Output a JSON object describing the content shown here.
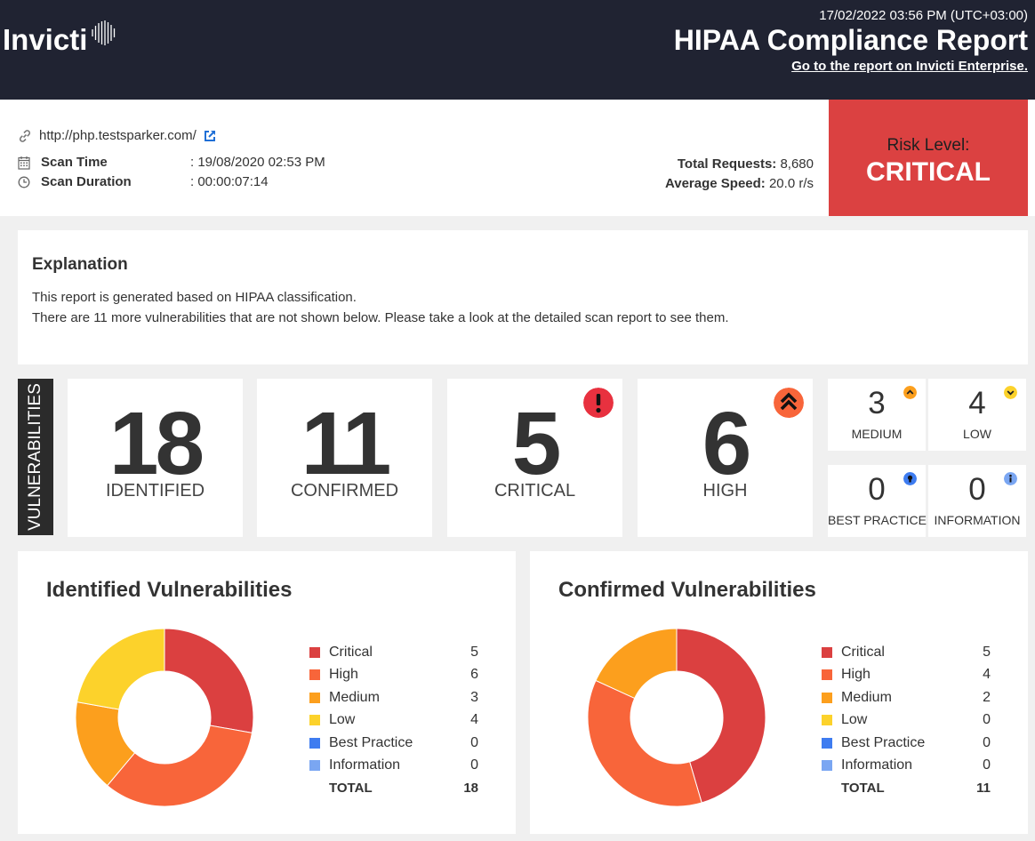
{
  "header": {
    "logo_text": "Invicti",
    "datetime": "17/02/2022 03:56 PM (UTC+03:00)",
    "title": "HIPAA Compliance Report",
    "link": "Go to the report on Invicti Enterprise."
  },
  "scan": {
    "url": "http://php.testsparker.com/",
    "scan_time_label": "Scan Time",
    "scan_time_value": ": 19/08/2020 02:53 PM",
    "scan_duration_label": "Scan Duration",
    "scan_duration_value": ": 00:00:07:14",
    "total_requests_label": "Total Requests:",
    "total_requests_value": "8,680",
    "average_speed_label": "Average Speed:",
    "average_speed_value": "20.0 r/s"
  },
  "risk": {
    "label": "Risk Level:",
    "value": "CRITICAL"
  },
  "explanation": {
    "title": "Explanation",
    "line1": "This report is generated based on HIPAA classification.",
    "line2": "There are 11 more vulnerabilities that are not shown below. Please take a look at the detailed scan report to see them."
  },
  "vulnerabilities": {
    "tab_label": "VULNERABILITIES",
    "identified": {
      "value": "18",
      "label": "IDENTIFIED"
    },
    "confirmed": {
      "value": "11",
      "label": "CONFIRMED"
    },
    "critical": {
      "value": "5",
      "label": "CRITICAL"
    },
    "high": {
      "value": "6",
      "label": "HIGH"
    },
    "medium": {
      "value": "3",
      "label": "MEDIUM"
    },
    "low": {
      "value": "4",
      "label": "LOW"
    },
    "best_practice": {
      "value": "0",
      "label": "BEST PRACTICE"
    },
    "information": {
      "value": "0",
      "label": "INFORMATION"
    }
  },
  "colors": {
    "critical": "#db4040",
    "high": "#f8653a",
    "medium": "#fc9f1d",
    "low": "#fcd22b",
    "best_practice": "#3e7cf0",
    "information": "#7aa6f2",
    "header_bg": "#202332",
    "risk_bg": "#db4141"
  },
  "chart_data": [
    {
      "type": "pie",
      "title": "Identified Vulnerabilities",
      "categories": [
        "Critical",
        "High",
        "Medium",
        "Low",
        "Best Practice",
        "Information"
      ],
      "values": [
        5,
        6,
        3,
        4,
        0,
        0
      ],
      "total_label": "TOTAL",
      "total": 18
    },
    {
      "type": "pie",
      "title": "Confirmed Vulnerabilities",
      "categories": [
        "Critical",
        "High",
        "Medium",
        "Low",
        "Best Practice",
        "Information"
      ],
      "values": [
        5,
        4,
        2,
        0,
        0,
        0
      ],
      "total_label": "TOTAL",
      "total": 11
    }
  ]
}
